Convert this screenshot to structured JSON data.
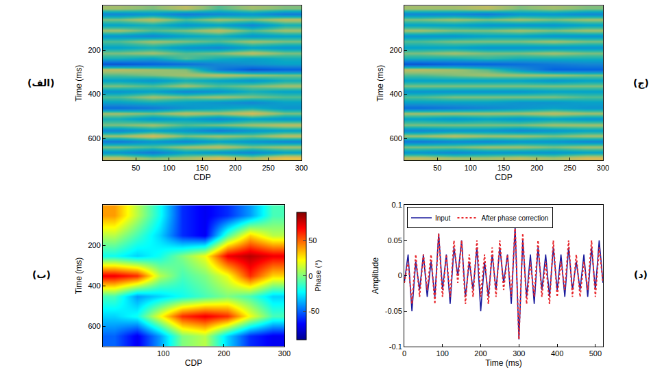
{
  "chart_data": [
    {
      "type": "heatmap",
      "panel_label": "(الف)",
      "color": "parula",
      "x_label": "CDP",
      "y_label": "Time (ms)",
      "xlim": [
        0,
        300
      ],
      "xticks": [
        50,
        100,
        150,
        200,
        250,
        300
      ],
      "ylim": [
        700,
        0
      ],
      "yticks": [
        200,
        400,
        600
      ],
      "zlim": [
        -1,
        1
      ],
      "x": [
        25,
        75,
        125,
        175,
        225,
        275
      ],
      "y": [
        12.5,
        37.5,
        62.5,
        87.5,
        112.5,
        137.5,
        162.5,
        187.5,
        212.5,
        237.5,
        262.5,
        287.5,
        312.5,
        337.5,
        362.5,
        387.5,
        412.5,
        437.5,
        462.5,
        487.5,
        512.5,
        537.5,
        562.5,
        587.5,
        612.5,
        637.5,
        662.5,
        687.5
      ],
      "z": [
        [
          0.3,
          0.2,
          0.4,
          0.1,
          0.3,
          0.2
        ],
        [
          -0.4,
          -0.3,
          -0.5,
          -0.4,
          -0.3,
          -0.5
        ],
        [
          0.2,
          0.4,
          0.1,
          0.3,
          0.2,
          0.4
        ],
        [
          -0.2,
          -0.1,
          -0.3,
          -0.2,
          -0.4,
          -0.1
        ],
        [
          0.3,
          0.1,
          0.2,
          0.4,
          0.1,
          0.3
        ],
        [
          -0.3,
          -0.4,
          -0.2,
          -0.1,
          -0.3,
          -0.2
        ],
        [
          0.1,
          0.3,
          0.2,
          0.1,
          0.3,
          0.2
        ],
        [
          -0.2,
          -0.1,
          -0.3,
          -0.4,
          -0.2,
          -0.3
        ],
        [
          0.2,
          0.3,
          0.1,
          0.2,
          0.4,
          0.2
        ],
        [
          -0.1,
          -0.2,
          0.1,
          -0.1,
          -0.2,
          -0.1
        ],
        [
          -0.8,
          -0.7,
          -0.6,
          -0.4,
          -0.3,
          -0.2
        ],
        [
          0.4,
          0.3,
          0.2,
          -0.5,
          -0.8,
          -0.7
        ],
        [
          0.1,
          0.2,
          0.3,
          0.4,
          0.3,
          0.2
        ],
        [
          -0.2,
          -0.3,
          -0.1,
          -0.2,
          -0.3,
          -0.1
        ],
        [
          0.2,
          0.1,
          0.3,
          0.1,
          0.2,
          0.3
        ],
        [
          -0.3,
          -0.2,
          -0.4,
          -0.3,
          -0.1,
          -0.2
        ],
        [
          0.1,
          0.3,
          0.2,
          0.3,
          0.2,
          0.1
        ],
        [
          -0.2,
          -0.1,
          -0.2,
          -0.3,
          -0.4,
          -0.2
        ],
        [
          -0.6,
          -0.5,
          -0.3,
          -0.2,
          -0.1,
          -0.3
        ],
        [
          0.3,
          0.2,
          0.4,
          0.3,
          0.5,
          0.2
        ],
        [
          -0.1,
          -0.3,
          -0.2,
          -0.4,
          -0.2,
          -0.3
        ],
        [
          0.2,
          0.3,
          0.1,
          0.2,
          0.3,
          0.4
        ],
        [
          -0.4,
          -0.2,
          -0.3,
          -0.5,
          -0.3,
          -0.2
        ],
        [
          0.3,
          0.5,
          0.2,
          0.3,
          0.2,
          0.4
        ],
        [
          -0.5,
          -0.3,
          -0.4,
          -0.2,
          -0.3,
          -0.4
        ],
        [
          0.2,
          0.1,
          0.3,
          0.4,
          0.2,
          0.3
        ],
        [
          -0.3,
          -0.5,
          -0.2,
          -0.3,
          -0.4,
          -0.2
        ],
        [
          0.4,
          0.2,
          0.3,
          0.5,
          0.3,
          0.6
        ]
      ]
    },
    {
      "type": "heatmap",
      "panel_label": "(ب)",
      "color": "jet",
      "x_label": "CDP",
      "y_label": "Time (ms)",
      "colorbar_title": "Phase (°)",
      "xlim": [
        0,
        300
      ],
      "xticks": [
        100,
        200,
        300
      ],
      "ylim": [
        700,
        0
      ],
      "yticks": [
        200,
        400,
        600
      ],
      "zlim": [
        -90,
        90
      ],
      "colorbar_ticks": [
        -50,
        0,
        50
      ],
      "x": [
        18.75,
        56.25,
        93.75,
        131.25,
        168.75,
        206.25,
        243.75,
        281.25
      ],
      "y": [
        50,
        150,
        250,
        350,
        450,
        550,
        650
      ],
      "z": [
        [
          40,
          10,
          -20,
          -60,
          -70,
          -60,
          -40,
          -10
        ],
        [
          10,
          -10,
          -30,
          -60,
          -70,
          -10,
          30,
          10
        ],
        [
          -20,
          -30,
          -20,
          0,
          20,
          70,
          80,
          70
        ],
        [
          70,
          60,
          10,
          -10,
          0,
          20,
          60,
          30
        ],
        [
          -10,
          -40,
          -30,
          -20,
          -10,
          0,
          -10,
          -30
        ],
        [
          -30,
          -20,
          20,
          60,
          70,
          60,
          20,
          -10
        ],
        [
          -50,
          -70,
          -40,
          0,
          10,
          -30,
          -60,
          -70
        ]
      ]
    },
    {
      "type": "heatmap",
      "panel_label": "(ج)",
      "color": "parula",
      "x_label": "CDP",
      "y_label": "Time (ms)",
      "xlim": [
        0,
        300
      ],
      "xticks": [
        50,
        100,
        150,
        200,
        250,
        300
      ],
      "ylim": [
        700,
        0
      ],
      "yticks": [
        200,
        400,
        600
      ],
      "zlim": [
        -1,
        1
      ],
      "x": [
        25,
        75,
        125,
        175,
        225,
        275
      ],
      "y": [
        12.5,
        37.5,
        62.5,
        87.5,
        112.5,
        137.5,
        162.5,
        187.5,
        212.5,
        237.5,
        262.5,
        287.5,
        312.5,
        337.5,
        362.5,
        387.5,
        412.5,
        437.5,
        462.5,
        487.5,
        512.5,
        537.5,
        562.5,
        587.5,
        612.5,
        637.5,
        662.5,
        687.5
      ],
      "z": [
        [
          0.3,
          0.3,
          0.4,
          0.2,
          0.3,
          0.2
        ],
        [
          -0.4,
          -0.4,
          -0.5,
          -0.3,
          -0.3,
          -0.4
        ],
        [
          0.2,
          0.3,
          0.2,
          0.3,
          0.2,
          0.3
        ],
        [
          -0.2,
          -0.2,
          -0.3,
          -0.3,
          -0.3,
          -0.2
        ],
        [
          0.3,
          0.2,
          0.2,
          0.3,
          0.2,
          0.3
        ],
        [
          -0.3,
          -0.3,
          -0.2,
          -0.2,
          -0.3,
          -0.3
        ],
        [
          0.1,
          0.2,
          0.2,
          0.2,
          0.3,
          0.2
        ],
        [
          -0.2,
          -0.2,
          -0.3,
          -0.3,
          -0.3,
          -0.3
        ],
        [
          0.2,
          0.3,
          0.2,
          0.2,
          0.3,
          0.2
        ],
        [
          -0.1,
          -0.1,
          0,
          -0.1,
          -0.1,
          -0.1
        ],
        [
          -0.8,
          -0.7,
          -0.7,
          -0.6,
          -0.5,
          -0.4
        ],
        [
          0.4,
          0.3,
          0.1,
          -0.3,
          -0.7,
          -0.7
        ],
        [
          0.1,
          0.2,
          0.3,
          0.3,
          0.3,
          0.2
        ],
        [
          -0.2,
          -0.2,
          -0.2,
          -0.2,
          -0.3,
          -0.2
        ],
        [
          0.2,
          0.2,
          0.2,
          0.2,
          0.2,
          0.2
        ],
        [
          -0.3,
          -0.3,
          -0.3,
          -0.3,
          -0.2,
          -0.2
        ],
        [
          0.1,
          0.2,
          0.2,
          0.2,
          0.2,
          0.1
        ],
        [
          -0.2,
          -0.2,
          -0.2,
          -0.3,
          -0.3,
          -0.2
        ],
        [
          -0.6,
          -0.5,
          -0.4,
          -0.3,
          -0.2,
          -0.3
        ],
        [
          0.3,
          0.3,
          0.3,
          0.3,
          0.4,
          0.3
        ],
        [
          -0.2,
          -0.3,
          -0.2,
          -0.3,
          -0.2,
          -0.3
        ],
        [
          0.2,
          0.2,
          0.2,
          0.2,
          0.3,
          0.3
        ],
        [
          -0.4,
          -0.3,
          -0.3,
          -0.4,
          -0.3,
          -0.2
        ],
        [
          0.3,
          0.4,
          0.3,
          0.3,
          0.2,
          0.3
        ],
        [
          -0.5,
          -0.4,
          -0.4,
          -0.3,
          -0.3,
          -0.4
        ],
        [
          0.2,
          0.2,
          0.3,
          0.3,
          0.2,
          0.3
        ],
        [
          -0.3,
          -0.4,
          -0.3,
          -0.3,
          -0.3,
          -0.2
        ],
        [
          0.4,
          0.3,
          0.3,
          0.4,
          0.3,
          0.5
        ]
      ]
    },
    {
      "type": "line",
      "panel_label": "(د)",
      "x_label": "Time (ms)",
      "y_label": "Amplitude",
      "xlim": [
        0,
        520
      ],
      "xticks": [
        0,
        100,
        200,
        300,
        400,
        500
      ],
      "ylim": [
        -0.1,
        0.1
      ],
      "yticks": [
        -0.1,
        -0.05,
        0,
        0.05,
        0.1
      ],
      "legend": "top",
      "x": [
        0,
        10,
        20,
        30,
        40,
        50,
        60,
        70,
        80,
        90,
        100,
        110,
        120,
        130,
        140,
        150,
        160,
        170,
        180,
        190,
        200,
        210,
        220,
        230,
        240,
        250,
        260,
        270,
        280,
        290,
        300,
        310,
        320,
        330,
        340,
        350,
        360,
        370,
        380,
        390,
        400,
        410,
        420,
        430,
        440,
        450,
        460,
        470,
        480,
        490,
        500,
        510,
        520
      ],
      "series": [
        {
          "name": "Input",
          "color": "#1a1a9c",
          "line_style": "solid",
          "values": [
            -0.01,
            0.03,
            -0.05,
            0.02,
            -0.02,
            0.03,
            -0.03,
            0.02,
            -0.03,
            0.06,
            -0.02,
            0.03,
            -0.04,
            0.04,
            0,
            0.05,
            -0.03,
            0.02,
            -0.02,
            0.04,
            -0.05,
            0.02,
            -0.03,
            0.03,
            -0.02,
            0.04,
            -0.01,
            0.03,
            -0.04,
            0.07,
            -0.09,
            0.05,
            -0.03,
            0.03,
            -0.04,
            0.04,
            -0.02,
            0.03,
            -0.03,
            0.04,
            -0.02,
            0.03,
            -0.03,
            0.04,
            -0.02,
            0.02,
            -0.02,
            0.03,
            -0.03,
            0.04,
            -0.02,
            0.05,
            -0.01
          ]
        },
        {
          "name": "After phase correction",
          "color": "#e8262b",
          "line_style": "dot",
          "values": [
            -0.01,
            0.02,
            -0.04,
            0.03,
            -0.03,
            0.03,
            -0.02,
            0.03,
            -0.04,
            0.06,
            -0.03,
            0.03,
            -0.03,
            0.05,
            -0.01,
            0.05,
            -0.04,
            0.03,
            -0.03,
            0.05,
            -0.03,
            0.03,
            -0.04,
            0.04,
            -0.03,
            0.05,
            -0.02,
            0.03,
            -0.03,
            0.07,
            -0.09,
            0.06,
            -0.04,
            0.02,
            -0.03,
            0.05,
            -0.03,
            0.02,
            -0.04,
            0.05,
            -0.03,
            0.02,
            -0.02,
            0.05,
            -0.03,
            0.03,
            -0.03,
            0.02,
            -0.02,
            0.05,
            -0.03,
            0.04,
            -0.01
          ]
        }
      ]
    }
  ]
}
